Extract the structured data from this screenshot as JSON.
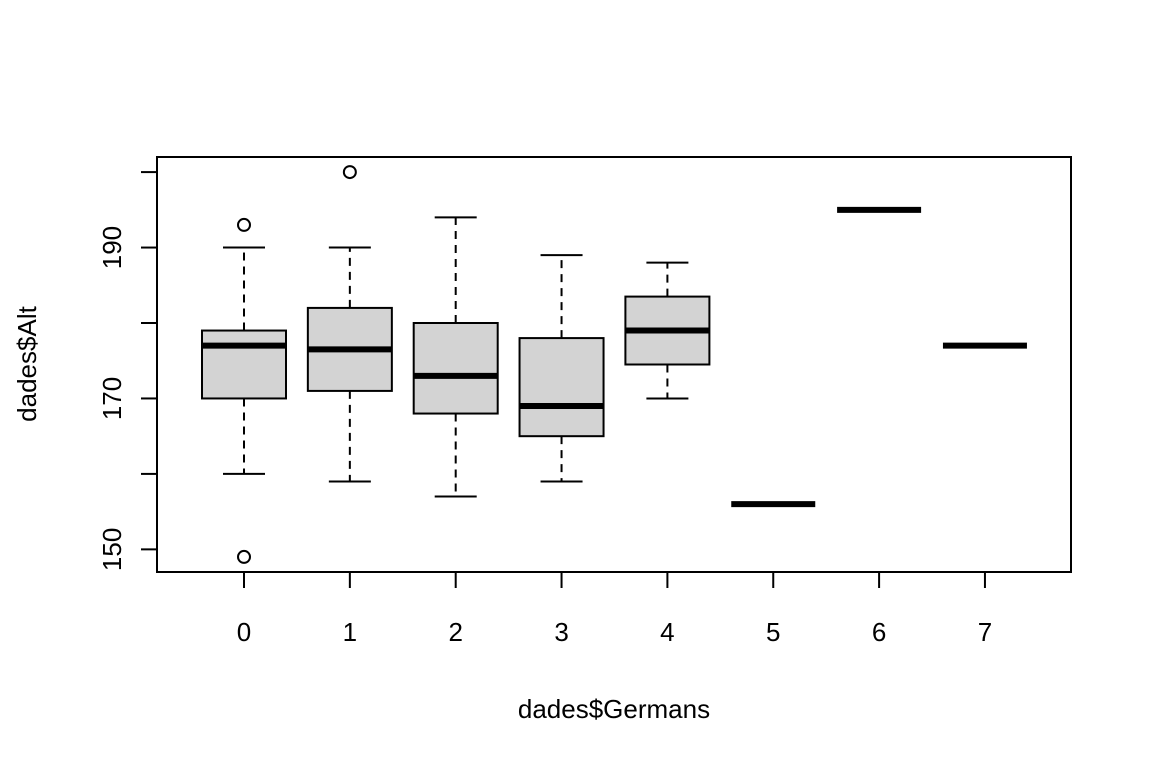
{
  "chart_data": {
    "type": "boxplot",
    "title": "",
    "xlabel": "dades$Germans",
    "ylabel": "dades$Alt",
    "categories": [
      "0",
      "1",
      "2",
      "3",
      "4",
      "5",
      "6",
      "7"
    ],
    "ylim": [
      147,
      202
    ],
    "yticks": [
      "150",
      "170",
      "190"
    ],
    "box_fill": "#d3d3d3",
    "line_color": "#000000",
    "boxes": [
      {
        "category": "0",
        "whisker_low": 160,
        "q1": 170,
        "median": 177,
        "q3": 179,
        "whisker_high": 190,
        "outliers": [
          193,
          149
        ]
      },
      {
        "category": "1",
        "whisker_low": 159,
        "q1": 171,
        "median": 176.5,
        "q3": 182,
        "whisker_high": 190,
        "outliers": [
          200
        ]
      },
      {
        "category": "2",
        "whisker_low": 157,
        "q1": 168,
        "median": 173,
        "q3": 180,
        "whisker_high": 194,
        "outliers": []
      },
      {
        "category": "3",
        "whisker_low": 159,
        "q1": 165,
        "median": 169,
        "q3": 178,
        "whisker_high": 189,
        "outliers": []
      },
      {
        "category": "4",
        "whisker_low": 170,
        "q1": 174.5,
        "median": 179,
        "q3": 183.5,
        "whisker_high": 188,
        "outliers": []
      },
      {
        "category": "5",
        "whisker_low": 156,
        "q1": 156,
        "median": 156,
        "q3": 156,
        "whisker_high": 156,
        "outliers": []
      },
      {
        "category": "6",
        "whisker_low": 195,
        "q1": 195,
        "median": 195,
        "q3": 195,
        "whisker_high": 195,
        "outliers": []
      },
      {
        "category": "7",
        "whisker_low": 177,
        "q1": 177,
        "median": 177,
        "q3": 177,
        "whisker_high": 177,
        "outliers": []
      }
    ]
  }
}
